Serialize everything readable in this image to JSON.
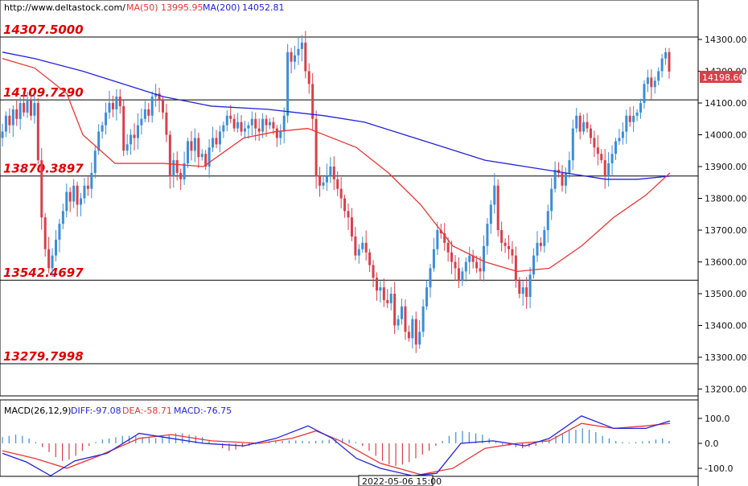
{
  "header": {
    "url": "http://www.deltastock.com/",
    "ma50_label": "MA(50)",
    "ma50_value": "13995.95",
    "ma200_label": "MA(200)",
    "ma200_value": "14052.81"
  },
  "macd_header": {
    "label": "MACD(26,12,9)",
    "diff": "DIFF:-97.08",
    "dea": "DEA:-58.71",
    "macd": "MACD:-76.75"
  },
  "price_tag": "14198.60",
  "time_label": "2022-05-06 15:00",
  "colors": {
    "up": "#3a8ed8",
    "down": "#d8404a",
    "ma50": "#ee3333",
    "ma200": "#2222dd",
    "level_text": "#e00000",
    "background": "#ffffff"
  },
  "chart_data": [
    {
      "type": "candlestick",
      "ylim": [
        13160,
        14370
      ],
      "yticks": [
        "14300.00",
        "14200.00",
        "14100.00",
        "14000.00",
        "13900.00",
        "13800.00",
        "13700.00",
        "13600.00",
        "13500.00",
        "13400.00",
        "13300.00",
        "13200.00"
      ],
      "levels": [
        {
          "label": "14307.5000",
          "value": 14307.5
        },
        {
          "label": "14109.7290",
          "value": 14109.729
        },
        {
          "label": "13870.3897",
          "value": 13870.3897
        },
        {
          "label": "13542.4697",
          "value": 13542.4697
        },
        {
          "label": "13279.7998",
          "value": 13279.7998
        }
      ],
      "close_series": [
        14010,
        14060,
        14030,
        14080,
        14050,
        14100,
        14070,
        14110,
        14060,
        14100,
        13920,
        13740,
        13640,
        13580,
        13620,
        13670,
        13720,
        13760,
        13820,
        13790,
        13840,
        13780,
        13800,
        13840,
        13830,
        13880,
        13950,
        14010,
        14030,
        14070,
        14100,
        14080,
        14120,
        14090,
        13950,
        13970,
        14000,
        13990,
        14030,
        14050,
        14080,
        14060,
        14120,
        14130,
        14110,
        14070,
        14000,
        13870,
        13920,
        13880,
        13860,
        13910,
        13980,
        13950,
        13990,
        13930,
        13940,
        13900,
        13960,
        13990,
        13970,
        14010,
        14030,
        14060,
        14050,
        14020,
        14040,
        14010,
        14020,
        14030,
        14050,
        14020,
        14010,
        14050,
        14030,
        14040,
        14020,
        13990,
        14010,
        14060,
        14260,
        14230,
        14250,
        14270,
        14290,
        14200,
        14160,
        14050,
        13870,
        13840,
        13850,
        13870,
        13900,
        13860,
        13830,
        13800,
        13760,
        13740,
        13680,
        13620,
        13640,
        13660,
        13630,
        13590,
        13550,
        13510,
        13520,
        13480,
        13470,
        13500,
        13400,
        13420,
        13460,
        13380,
        13360,
        13420,
        13340,
        13380,
        13460,
        13520,
        13580,
        13640,
        13700,
        13690,
        13660,
        13630,
        13600,
        13580,
        13540,
        13570,
        13600,
        13620,
        13600,
        13580,
        13570,
        13650,
        13720,
        13780,
        13840,
        13700,
        13660,
        13650,
        13640,
        13620,
        13540,
        13500,
        13520,
        13490,
        13560,
        13620,
        13660,
        13650,
        13700,
        13760,
        13830,
        13890,
        13880,
        13840,
        13880,
        13920,
        14020,
        14060,
        14010,
        14040,
        14020,
        13990,
        13960,
        13940,
        13920,
        13870,
        13910,
        13940,
        13980,
        13990,
        14010,
        14060,
        14040,
        14060,
        14070,
        14100,
        14160,
        14180,
        14150,
        14170,
        14200,
        14240,
        14260,
        14198.6
      ],
      "ma50": [
        [
          0,
          14240
        ],
        [
          40,
          14210
        ],
        [
          80,
          14130
        ],
        [
          100,
          14000
        ],
        [
          140,
          13910
        ],
        [
          200,
          13910
        ],
        [
          250,
          13900
        ],
        [
          300,
          13990
        ],
        [
          340,
          14010
        ],
        [
          380,
          14020
        ],
        [
          410,
          13990
        ],
        [
          440,
          13960
        ],
        [
          480,
          13880
        ],
        [
          520,
          13780
        ],
        [
          560,
          13650
        ],
        [
          600,
          13600
        ],
        [
          640,
          13570
        ],
        [
          680,
          13580
        ],
        [
          720,
          13650
        ],
        [
          760,
          13740
        ],
        [
          800,
          13810
        ],
        [
          830,
          13880
        ]
      ],
      "ma200": [
        [
          0,
          14260
        ],
        [
          40,
          14240
        ],
        [
          100,
          14200
        ],
        [
          200,
          14120
        ],
        [
          260,
          14090
        ],
        [
          330,
          14080
        ],
        [
          400,
          14060
        ],
        [
          450,
          14040
        ],
        [
          500,
          14000
        ],
        [
          550,
          13960
        ],
        [
          600,
          13920
        ],
        [
          650,
          13900
        ],
        [
          700,
          13880
        ],
        [
          750,
          13860
        ],
        [
          790,
          13860
        ],
        [
          830,
          13870
        ]
      ]
    },
    {
      "type": "macd",
      "ylim": [
        -130,
        140
      ],
      "yticks": [
        "100.0",
        "0.0",
        "-100.0"
      ],
      "hist_series": [
        25,
        30,
        35,
        30,
        20,
        5,
        -15,
        -35,
        -55,
        -70,
        -65,
        -50,
        -30,
        -10,
        5,
        15,
        20,
        25,
        30,
        30,
        28,
        25,
        22,
        20,
        30,
        35,
        40,
        40,
        35,
        30,
        25,
        10,
        -5,
        -20,
        -30,
        -25,
        -15,
        -10,
        -5,
        0,
        5,
        8,
        10,
        12,
        12,
        10,
        8,
        10,
        12,
        15,
        18,
        20,
        15,
        5,
        -10,
        -30,
        -50,
        -70,
        -85,
        -90,
        -85,
        -75,
        -60,
        -45,
        -30,
        -10,
        10,
        30,
        45,
        50,
        45,
        40,
        35,
        20,
        5,
        -5,
        -10,
        -15,
        -20,
        -15,
        -10,
        5,
        15,
        30,
        40,
        50,
        55,
        60,
        55,
        45,
        30,
        20,
        10,
        5,
        3,
        5,
        8,
        10,
        15,
        20,
        10
      ],
      "diff": [
        [
          0,
          -40
        ],
        [
          30,
          -75
        ],
        [
          60,
          -130
        ],
        [
          90,
          -70
        ],
        [
          130,
          -40
        ],
        [
          170,
          40
        ],
        [
          210,
          20
        ],
        [
          250,
          0
        ],
        [
          300,
          -10
        ],
        [
          340,
          20
        ],
        [
          380,
          70
        ],
        [
          410,
          20
        ],
        [
          440,
          -60
        ],
        [
          470,
          -100
        ],
        [
          510,
          -130
        ],
        [
          540,
          -120
        ],
        [
          570,
          0
        ],
        [
          610,
          10
        ],
        [
          650,
          -10
        ],
        [
          680,
          20
        ],
        [
          720,
          110
        ],
        [
          760,
          60
        ],
        [
          800,
          60
        ],
        [
          830,
          90
        ]
      ],
      "dea": [
        [
          0,
          -30
        ],
        [
          40,
          -60
        ],
        [
          80,
          -100
        ],
        [
          120,
          -50
        ],
        [
          170,
          20
        ],
        [
          210,
          35
        ],
        [
          260,
          10
        ],
        [
          320,
          0
        ],
        [
          360,
          20
        ],
        [
          390,
          50
        ],
        [
          420,
          10
        ],
        [
          470,
          -80
        ],
        [
          520,
          -125
        ],
        [
          560,
          -100
        ],
        [
          600,
          -20
        ],
        [
          640,
          0
        ],
        [
          680,
          10
        ],
        [
          720,
          80
        ],
        [
          760,
          60
        ],
        [
          800,
          70
        ],
        [
          830,
          80
        ]
      ]
    }
  ]
}
